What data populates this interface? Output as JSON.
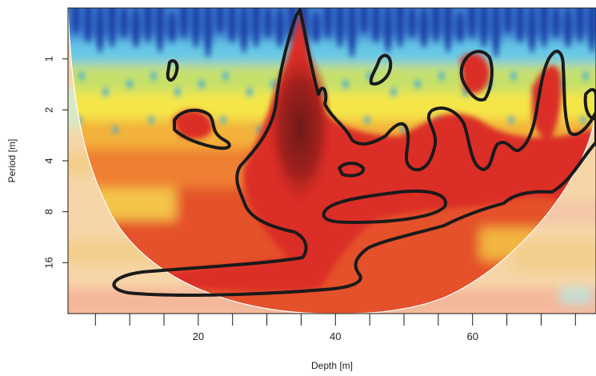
{
  "chart_data": {
    "type": "heatmap",
    "title": "",
    "xlabel": "Depth [m]",
    "ylabel": "Period [m]",
    "xlim": [
      1,
      78
    ],
    "x_ticks": [
      20,
      40,
      60
    ],
    "x_minor_ticks": [
      5,
      10,
      15,
      20,
      25,
      30,
      35,
      40,
      45,
      50,
      55,
      60,
      65,
      70,
      75
    ],
    "y_scale": "log2",
    "ylim": [
      0.5,
      32
    ],
    "y_ticks": [
      1,
      2,
      4,
      8,
      16
    ],
    "y_tick_labels": [
      "1",
      "2",
      "4",
      "8",
      "16"
    ],
    "colormap": "jet (blue = low power, dark red = high power)",
    "colors": {
      "low": "#1c2f9a",
      "mid_low": "#5ac8e8",
      "mid": "#f5f04a",
      "mid_high": "#ee6a30",
      "high": "#d42a24",
      "peak": "#6e1a18",
      "contour": "#1a1a1a",
      "cone_of_influence": "#ffffff"
    },
    "cone_of_influence": true,
    "significance_contours": true,
    "dominant_peak": {
      "depth": 35,
      "period_range": [
        0.6,
        6
      ]
    },
    "significant_region_periods": [
      2,
      24
    ]
  }
}
